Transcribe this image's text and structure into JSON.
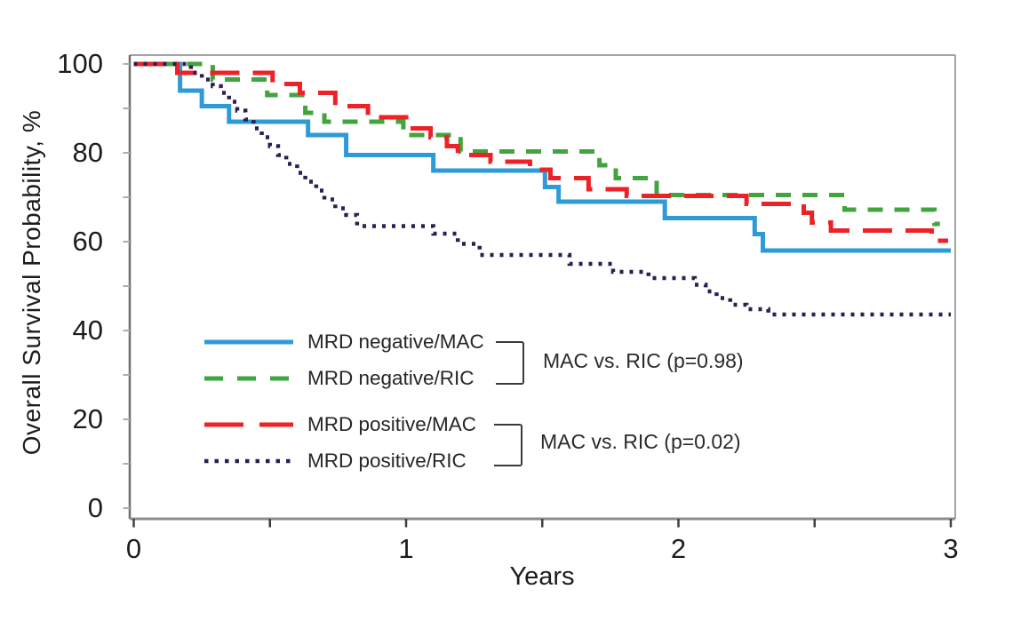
{
  "figure": {
    "background": "#ffffff",
    "frame_color": "#a3a3a3",
    "axis_color": "#6e6e6e",
    "tick_color_y": "#adadad",
    "tick_color_x": "#3f3f3f"
  },
  "chart_data": {
    "type": "line",
    "subtype": "kaplan-meier-step",
    "title": "",
    "xlabel": "Years",
    "ylabel": "Overall Survival Probability, %",
    "xlim": [
      0,
      3
    ],
    "ylim": [
      0,
      100
    ],
    "grid": false,
    "legend_position": "inside-lower-left",
    "x_axis": {
      "major_ticks": [
        {
          "v": 0,
          "label": "0"
        },
        {
          "v": 1,
          "label": "1"
        },
        {
          "v": 2,
          "label": "2"
        },
        {
          "v": 3,
          "label": "3"
        }
      ],
      "minor_ticks": [
        0.5,
        1.5,
        2.5
      ]
    },
    "y_axis": {
      "major_ticks": [
        {
          "v": 100,
          "label": "100"
        },
        {
          "v": 80,
          "label": "80"
        },
        {
          "v": 60,
          "label": "60"
        },
        {
          "v": 40,
          "label": "40"
        },
        {
          "v": 20,
          "label": "20"
        },
        {
          "v": 0,
          "label": "0"
        }
      ],
      "minor_ticks": [
        10,
        30,
        50,
        70,
        90
      ]
    },
    "series": [
      {
        "name": "MRD negative/MAC",
        "color": "#2E9BD9",
        "line_style": "solid",
        "points": [
          [
            0,
            100
          ],
          [
            0.17,
            94
          ],
          [
            0.25,
            90.5
          ],
          [
            0.35,
            87
          ],
          [
            0.64,
            84
          ],
          [
            0.78,
            79.5
          ],
          [
            1.1,
            76
          ],
          [
            1.51,
            72.3
          ],
          [
            1.56,
            69
          ],
          [
            1.95,
            65.3
          ],
          [
            2.28,
            61.7
          ],
          [
            2.31,
            58
          ],
          [
            3,
            58
          ]
        ]
      },
      {
        "name": "MRD negative/RIC",
        "color": "#42A43F",
        "line_style": "dashed",
        "points": [
          [
            0,
            100
          ],
          [
            0.29,
            96.5
          ],
          [
            0.49,
            93
          ],
          [
            0.63,
            89
          ],
          [
            0.7,
            87
          ],
          [
            0.99,
            84
          ],
          [
            1.2,
            80.3
          ],
          [
            1.71,
            77.2
          ],
          [
            1.77,
            74.3
          ],
          [
            1.92,
            70.5
          ],
          [
            2.61,
            67.2
          ],
          [
            2.94,
            64
          ],
          [
            2.96,
            64
          ]
        ]
      },
      {
        "name": "MRD positive/MAC",
        "color": "#EC2227",
        "line_style": "longdash",
        "points": [
          [
            0,
            100
          ],
          [
            0.16,
            98
          ],
          [
            0.51,
            95.5
          ],
          [
            0.61,
            93.5
          ],
          [
            0.74,
            90.5
          ],
          [
            0.86,
            88
          ],
          [
            1.0,
            85.5
          ],
          [
            1.09,
            83.5
          ],
          [
            1.15,
            81.5
          ],
          [
            1.19,
            79.5
          ],
          [
            1.31,
            78
          ],
          [
            1.455,
            76.2
          ],
          [
            1.53,
            74.3
          ],
          [
            1.67,
            71.8
          ],
          [
            1.81,
            70.3
          ],
          [
            2.25,
            68.5
          ],
          [
            2.46,
            66.5
          ],
          [
            2.49,
            64.3
          ],
          [
            2.56,
            62.5
          ],
          [
            2.93,
            60.2
          ],
          [
            2.99,
            60.2
          ]
        ]
      },
      {
        "name": "MRD positive/RIC",
        "color": "#2E1E50",
        "line_style": "dotted",
        "points": [
          [
            0,
            100
          ],
          [
            0.21,
            98
          ],
          [
            0.25,
            96.5
          ],
          [
            0.29,
            95
          ],
          [
            0.32,
            93.5
          ],
          [
            0.35,
            91.5
          ],
          [
            0.38,
            89.5
          ],
          [
            0.41,
            87.5
          ],
          [
            0.44,
            85.5
          ],
          [
            0.47,
            83.5
          ],
          [
            0.5,
            81.5
          ],
          [
            0.53,
            79.5
          ],
          [
            0.56,
            77.5
          ],
          [
            0.6,
            75.5
          ],
          [
            0.63,
            73.5
          ],
          [
            0.67,
            71.5
          ],
          [
            0.7,
            69.5
          ],
          [
            0.74,
            67.5
          ],
          [
            0.78,
            66
          ],
          [
            0.82,
            63.5
          ],
          [
            1.1,
            61.8
          ],
          [
            1.19,
            59.5
          ],
          [
            1.27,
            57
          ],
          [
            1.6,
            55
          ],
          [
            1.76,
            53.2
          ],
          [
            1.89,
            51.8
          ],
          [
            2.06,
            50.3
          ],
          [
            2.1,
            48.8
          ],
          [
            2.14,
            47.3
          ],
          [
            2.19,
            45.8
          ],
          [
            2.25,
            44.8
          ],
          [
            2.33,
            43.6
          ],
          [
            3,
            43.6
          ]
        ]
      }
    ],
    "annotations": [
      {
        "text": "MAC vs. RIC (p=0.98)",
        "applies_to": [
          "MRD negative/MAC",
          "MRD negative/RIC"
        ]
      },
      {
        "text": "MAC vs. RIC (p=0.02)",
        "applies_to": [
          "MRD positive/MAC",
          "MRD positive/RIC"
        ]
      }
    ]
  }
}
